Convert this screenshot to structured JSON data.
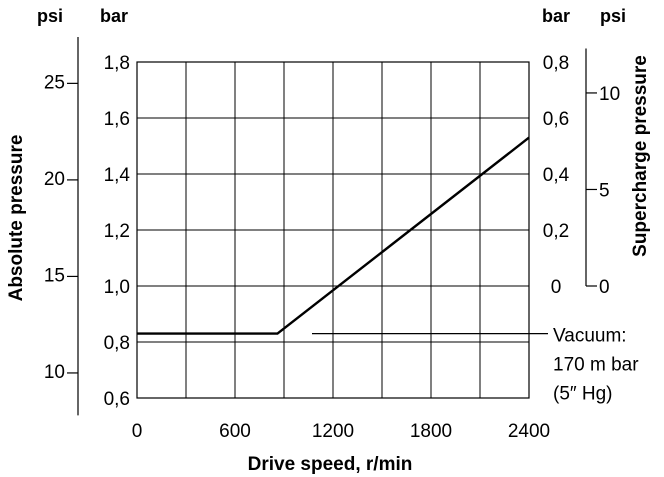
{
  "chart_data": {
    "type": "line",
    "title": "",
    "xlabel": "Drive speed, r/min",
    "xlim": [
      0,
      2400
    ],
    "x_ticks": [
      "0",
      "600",
      "1200",
      "1800",
      "2400"
    ],
    "x_ticks_values": [
      0,
      600,
      1200,
      1800,
      2400
    ],
    "grid": true,
    "left_axes": {
      "title": "Absolute pressure",
      "bar_unit": "bar",
      "psi_unit": "psi",
      "bar_ticks": [
        {
          "value": 0.6,
          "label": "0,6"
        },
        {
          "value": 0.8,
          "label": "0,8"
        },
        {
          "value": 1.0,
          "label": "1,0"
        },
        {
          "value": 1.2,
          "label": "1,2"
        },
        {
          "value": 1.4,
          "label": "1,4"
        },
        {
          "value": 1.6,
          "label": "1,6"
        },
        {
          "value": 1.8,
          "label": "1,8"
        }
      ],
      "bar_ylim": [
        0.6,
        1.8
      ],
      "psi_ticks": [
        {
          "value": 10,
          "label": "10"
        },
        {
          "value": 15,
          "label": "15"
        },
        {
          "value": 20,
          "label": "20"
        },
        {
          "value": 25,
          "label": "25"
        }
      ]
    },
    "right_axes": {
      "title": "Supercharge pressure",
      "bar_unit": "bar",
      "psi_unit": "psi",
      "bar_ticks": [
        {
          "value": 0,
          "label": "0"
        },
        {
          "value": 0.2,
          "label": "0,2"
        },
        {
          "value": 0.4,
          "label": "0,4"
        },
        {
          "value": 0.6,
          "label": "0,6"
        },
        {
          "value": 0.8,
          "label": "0,8"
        }
      ],
      "psi_ticks": [
        {
          "value": 0,
          "label": "0"
        },
        {
          "value": 5,
          "label": "5"
        },
        {
          "value": 10,
          "label": "10"
        }
      ]
    },
    "series": [
      {
        "x": [
          0,
          860,
          2400
        ],
        "y": [
          0.83,
          0.83,
          1.53
        ]
      }
    ],
    "annotation": {
      "lines": [
        "Vacuum:",
        "170 m bar",
        "(5″ Hg)"
      ],
      "at_bar": 0.83
    }
  }
}
